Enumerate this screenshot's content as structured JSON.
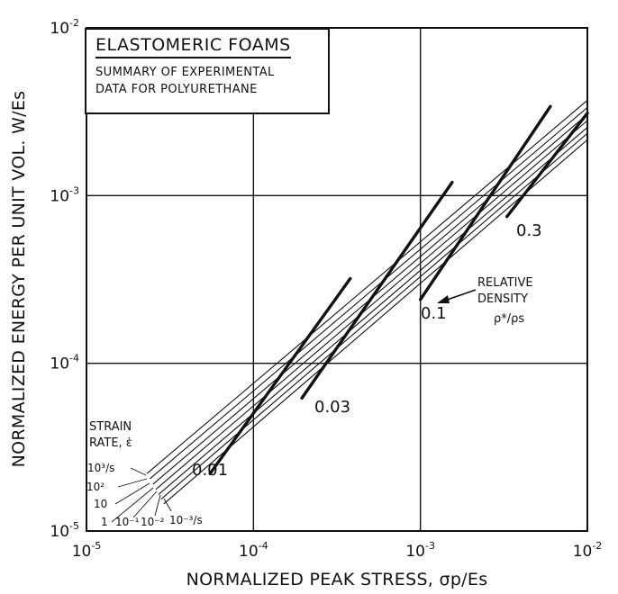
{
  "chart_data": {
    "type": "line",
    "title": "ELASTOMERIC FOAMS",
    "subtitle_lines": [
      "SUMMARY OF EXPERIMENTAL",
      "DATA FOR POLYURETHANE"
    ],
    "xlabel": "NORMALIZED PEAK STRESS, σp/Es",
    "ylabel": "NORMALIZED ENERGY PER UNIT VOL. W/Es",
    "xscale": "log",
    "yscale": "log",
    "xlim": [
      1e-05,
      0.01
    ],
    "ylim": [
      1e-05,
      0.01
    ],
    "x_ticks": [
      "10",
      "10",
      "10",
      "10"
    ],
    "x_tick_exponents": [
      "-5",
      "-4",
      "-3",
      "-2"
    ],
    "y_ticks": [
      "10",
      "10",
      "10",
      "10"
    ],
    "y_tick_exponents": [
      "-5",
      "-4",
      "-3",
      "-2"
    ],
    "grid": true,
    "strain_rate_label": [
      "STRAIN",
      "RATE, ε̇"
    ],
    "strain_rate_series": [
      {
        "label": "10³/s",
        "points": [
          [
            2.3e-05,
            2.2e-05
          ],
          [
            0.01,
            0.0037
          ]
        ]
      },
      {
        "label": "10²",
        "points": [
          [
            2.4e-05,
            2.05e-05
          ],
          [
            0.01,
            0.00335
          ]
        ]
      },
      {
        "label": "10",
        "points": [
          [
            2.5e-05,
            1.9e-05
          ],
          [
            0.01,
            0.00305
          ]
        ]
      },
      {
        "label": "1",
        "points": [
          [
            2.6e-05,
            1.77e-05
          ],
          [
            0.01,
            0.0028
          ]
        ]
      },
      {
        "label": "10⁻¹",
        "points": [
          [
            2.7e-05,
            1.65e-05
          ],
          [
            0.01,
            0.00255
          ]
        ]
      },
      {
        "label": "10⁻²",
        "points": [
          [
            2.8e-05,
            1.55e-05
          ],
          [
            0.01,
            0.00235
          ]
        ]
      },
      {
        "label": "10⁻³/s",
        "points": [
          [
            2.9e-05,
            1.45e-05
          ],
          [
            0.01,
            0.00215
          ]
        ]
      }
    ],
    "density_series": [
      {
        "label": "0.01",
        "points": [
          [
            5.5e-05,
            2.2e-05
          ],
          [
            0.00038,
            0.00032
          ]
        ]
      },
      {
        "label": "0.03",
        "points": [
          [
            0.000195,
            6.2e-05
          ],
          [
            0.00155,
            0.0012
          ]
        ]
      },
      {
        "label": "0.1",
        "points": [
          [
            0.001,
            0.00024
          ],
          [
            0.006,
            0.0034
          ]
        ]
      },
      {
        "label": "0.3",
        "points": [
          [
            0.0033,
            0.00075
          ],
          [
            0.01,
            0.0031
          ]
        ]
      }
    ],
    "density_annotation": [
      "RELATIVE",
      "DENSITY",
      "ρ*/ρs"
    ]
  }
}
